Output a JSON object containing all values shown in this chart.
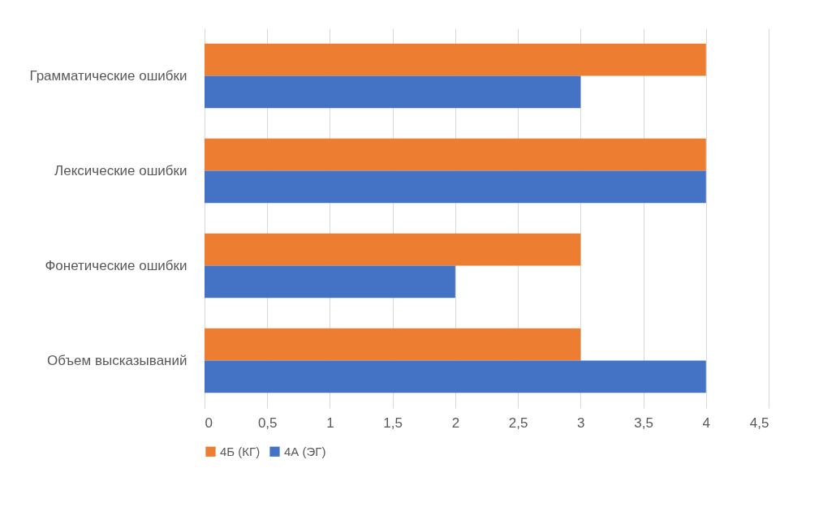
{
  "chart_data": {
    "type": "bar",
    "orientation": "horizontal",
    "categories": [
      "Грамматические ошибки",
      "Лексические ошибки",
      "Фонетические ошибки",
      "Объем высказываний"
    ],
    "series": [
      {
        "name": "4Б (КГ)",
        "color": "#ed7d31",
        "values": [
          4,
          4,
          3,
          3
        ]
      },
      {
        "name": "4А (ЭГ)",
        "color": "#4472c4",
        "values": [
          3,
          4,
          2,
          4
        ]
      }
    ],
    "xlim": [
      0,
      4.5
    ],
    "xticks": [
      0,
      {
        "value": 0.5,
        "label": "0,5"
      },
      1,
      {
        "value": 1.5,
        "label": "1,5"
      },
      2,
      {
        "value": 2.5,
        "label": "2,5"
      },
      3,
      {
        "value": 3.5,
        "label": "3,5"
      },
      4,
      {
        "value": 4.5,
        "label": "4,5"
      }
    ],
    "grid": "x",
    "legend": "bottom"
  }
}
